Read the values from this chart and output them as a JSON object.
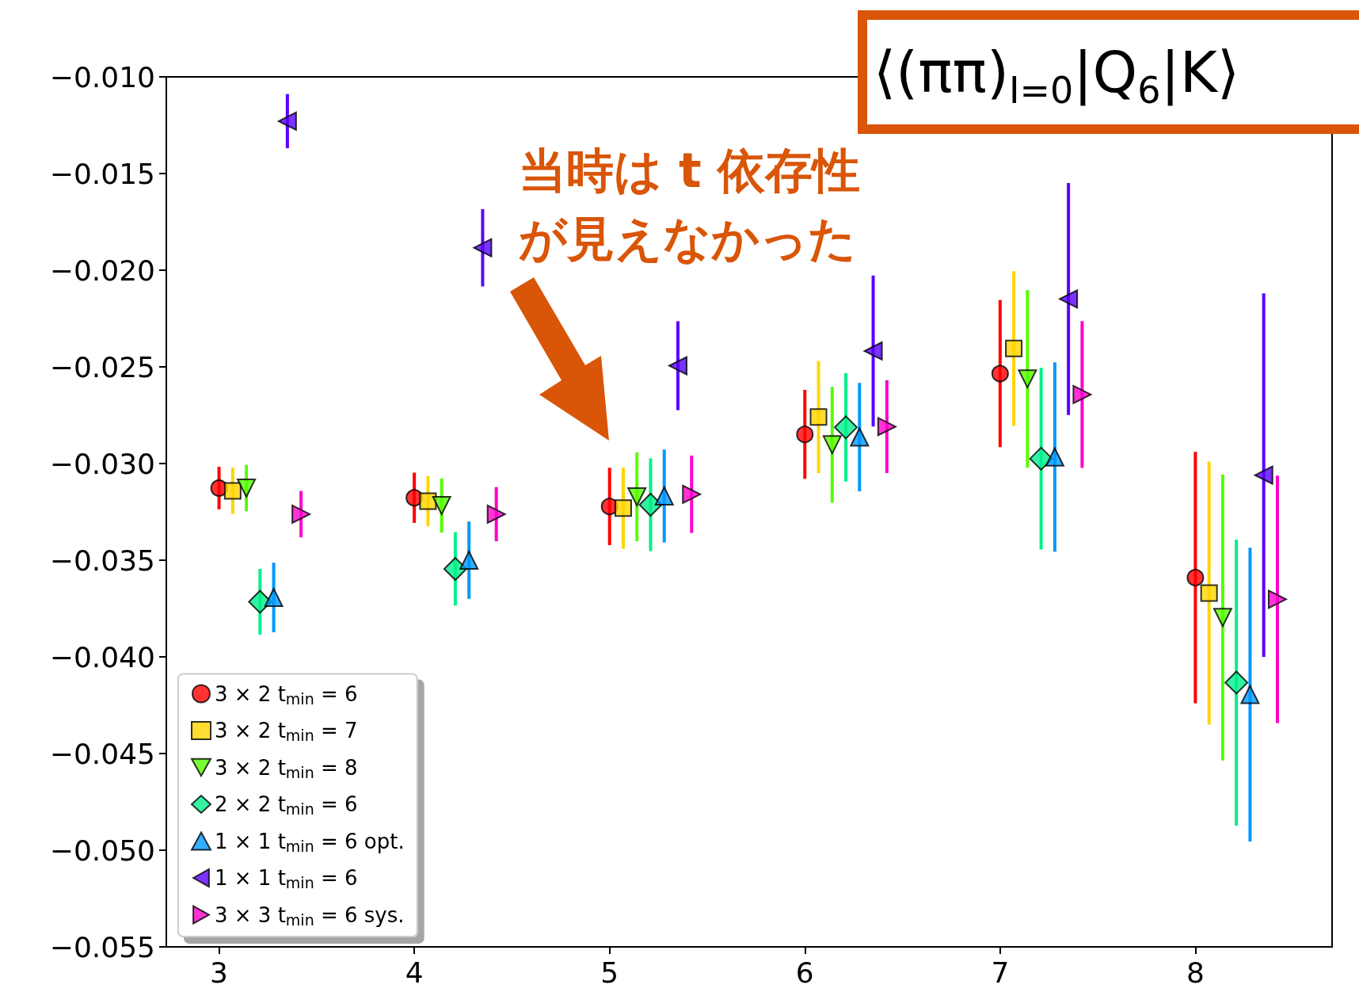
{
  "chart_data": {
    "type": "scatter",
    "title": "⟨(ππ)$_{I=0}$|Q$_{6}$|K⟩",
    "annotations": [
      "当時は t 依存性",
      "が見えなかった"
    ],
    "xlim": [
      2.73,
      8.7
    ],
    "xticks": [
      3,
      4,
      5,
      6,
      7,
      8
    ],
    "ylim": [
      -0.055,
      -0.01
    ],
    "yticks": [
      {
        "value": -0.055,
        "label": "−0.055"
      },
      {
        "value": -0.05,
        "label": "−0.050"
      },
      {
        "value": -0.045,
        "label": "−0.045"
      },
      {
        "value": -0.04,
        "label": "−0.040"
      },
      {
        "value": -0.035,
        "label": "−0.035"
      },
      {
        "value": -0.03,
        "label": "−0.030"
      },
      {
        "value": -0.025,
        "label": "−0.025"
      },
      {
        "value": -0.02,
        "label": "−0.020"
      },
      {
        "value": -0.015,
        "label": "−0.015"
      },
      {
        "value": -0.01,
        "label": "−0.010"
      }
    ],
    "grid": false,
    "legend": "bottom left",
    "series": [
      {
        "name": "3 × 2 t$_{min}$ = 6",
        "color": "#ff0000",
        "marker": "circle",
        "x": [
          3,
          4,
          5,
          6,
          7,
          8
        ],
        "values": [
          -0.03127,
          -0.03177,
          -0.03222,
          -0.02849,
          -0.02535,
          -0.0359
        ],
        "errors": [
          0.0011,
          0.0013,
          0.002,
          0.0023,
          0.0038,
          0.0065
        ]
      },
      {
        "name": "3 × 2 t$_{min}$ = 7",
        "color": "#ffd500",
        "marker": "square",
        "x": [
          3.07,
          4.07,
          5.07,
          6.07,
          7.07,
          8.07
        ],
        "values": [
          -0.03141,
          -0.03195,
          -0.03231,
          -0.02759,
          -0.02405,
          -0.0367
        ],
        "errors": [
          0.0012,
          0.0013,
          0.0021,
          0.0029,
          0.004,
          0.0068
        ]
      },
      {
        "name": "3 × 2 t$_{min}$ = 8",
        "color": "#55ff00",
        "marker": "triangle-down",
        "x": [
          3.14,
          4.14,
          5.14,
          6.14,
          7.14,
          8.14
        ],
        "values": [
          -0.03127,
          -0.03217,
          -0.03172,
          -0.02903,
          -0.02562,
          -0.03796
        ],
        "errors": [
          0.0012,
          0.0014,
          0.0023,
          0.003,
          0.0046,
          0.0074
        ]
      },
      {
        "name": "2 × 2 t$_{min}$ = 6",
        "color": "#00f08a",
        "marker": "diamond",
        "x": [
          3.21,
          4.21,
          5.21,
          6.21,
          7.21,
          8.21
        ],
        "values": [
          -0.03715,
          -0.03545,
          -0.03213,
          -0.02813,
          -0.02975,
          -0.04133
        ],
        "errors": [
          0.0017,
          0.0019,
          0.0024,
          0.0028,
          0.0047,
          0.0074
        ]
      },
      {
        "name": "1 × 1 t$_{min}$ = 6 opt.",
        "color": "#0099ff",
        "marker": "triangle",
        "x": [
          3.28,
          4.28,
          5.28,
          6.28,
          7.28,
          8.28
        ],
        "values": [
          -0.03693,
          -0.035,
          -0.03168,
          -0.02863,
          -0.02966,
          -0.04195
        ],
        "errors": [
          0.0018,
          0.002,
          0.0024,
          0.0028,
          0.0049,
          0.0076
        ]
      },
      {
        "name": "1 × 1 t$_{min}$ = 6",
        "color": "#5a00ff",
        "marker": "triangle-left",
        "x": [
          3.35,
          4.35,
          5.35,
          6.35,
          7.35,
          8.35
        ],
        "values": [
          -0.01229,
          -0.01884,
          -0.02494,
          -0.02418,
          -0.02149,
          -0.0306
        ],
        "errors": [
          0.0014,
          0.002,
          0.0023,
          0.0039,
          0.006,
          0.0094
        ]
      },
      {
        "name": "3 × 3 t$_{min}$ = 6 sys.",
        "color": "#ff00cc",
        "marker": "triangle-right",
        "x": [
          3.42,
          4.42,
          5.42,
          6.42,
          7.42,
          8.42
        ],
        "values": [
          -0.03262,
          -0.03262,
          -0.03159,
          -0.02809,
          -0.02643,
          -0.03702
        ],
        "errors": [
          0.0012,
          0.0014,
          0.002,
          0.0024,
          0.0038,
          0.0064
        ]
      }
    ]
  }
}
